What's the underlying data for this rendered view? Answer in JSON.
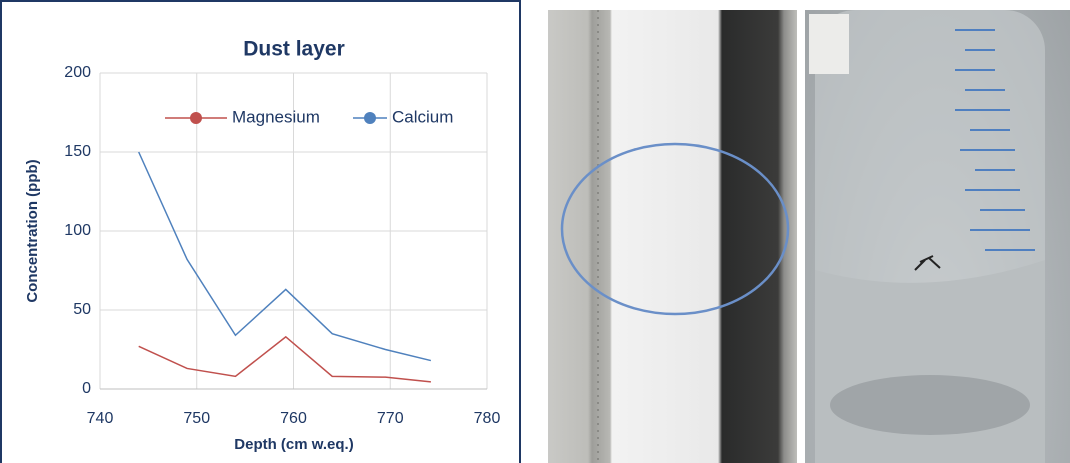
{
  "chart_data": {
    "type": "line",
    "title": "Dust layer",
    "x_label": "Depth (cm w.eq.)",
    "y_label": "Concentration (ppb)",
    "x": [
      744,
      749,
      754,
      759.2,
      764,
      769.5,
      774.2
    ],
    "series": [
      {
        "name": "Magnesium",
        "color": "#c0504d",
        "values": [
          27,
          13,
          8,
          33,
          8,
          7.5,
          4.5
        ]
      },
      {
        "name": "Calcium",
        "color": "#4f81bd",
        "values": [
          150,
          82,
          34,
          63,
          35,
          25,
          18
        ]
      }
    ],
    "xlim": [
      740,
      780
    ],
    "xticks": [
      740,
      750,
      760,
      770,
      780
    ],
    "ylim": [
      0,
      200
    ],
    "yticks": [
      0,
      50,
      100,
      150,
      200
    ],
    "grid": true,
    "legend": "top"
  }
}
